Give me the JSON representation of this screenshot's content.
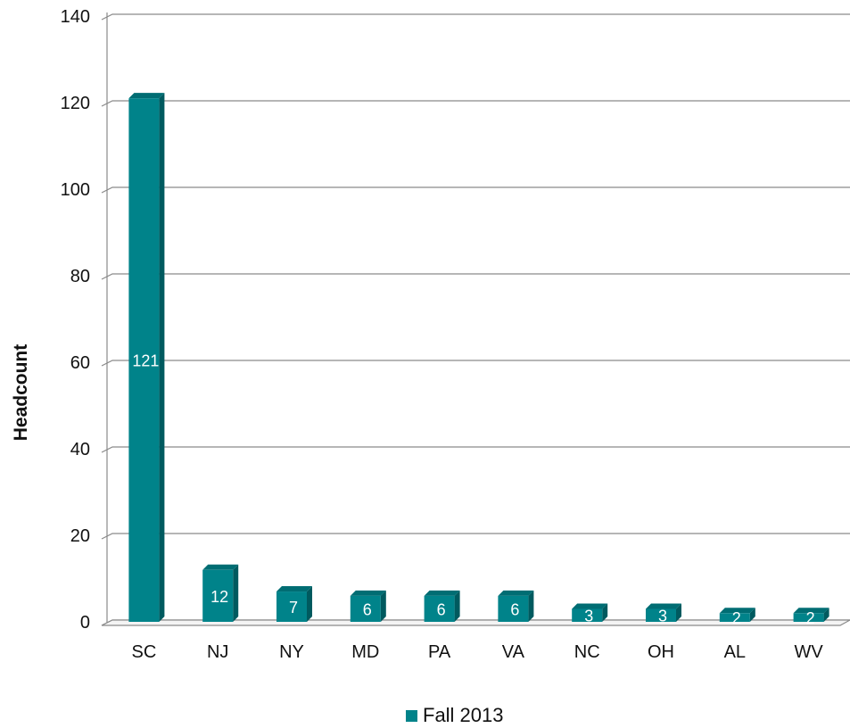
{
  "chart_data": {
    "type": "bar",
    "title": "",
    "xlabel": "",
    "ylabel": "Headcount",
    "categories": [
      "SC",
      "NJ",
      "NY",
      "MD",
      "PA",
      "VA",
      "NC",
      "OH",
      "AL",
      "WV"
    ],
    "series": [
      {
        "name": "Fall 2013",
        "values": [
          121,
          12,
          7,
          6,
          6,
          6,
          3,
          3,
          2,
          2
        ],
        "data_labels": [
          "121",
          "12",
          "7",
          "6",
          "6",
          "6",
          "3",
          "3",
          "2",
          "2"
        ]
      }
    ],
    "ylim": [
      0,
      140
    ],
    "yticks": [
      0,
      20,
      40,
      60,
      80,
      100,
      120,
      140
    ],
    "grid": true,
    "legend_position": "bottom",
    "colors": {
      "bar": "#00838a",
      "bar_top": "#006d73",
      "bar_shadow": "#005a5f",
      "grid": "#8a8a8a",
      "axis": "#8a8a8a"
    }
  }
}
